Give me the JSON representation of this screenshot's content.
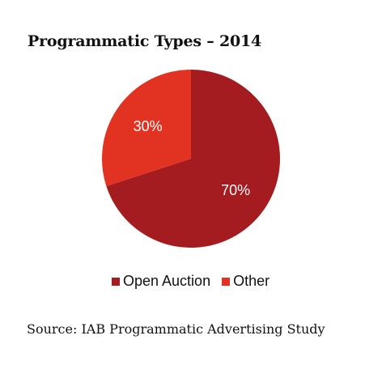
{
  "title": "Programmatic Types – 2014",
  "source": "Source: IAB Programmatic Advertising Study",
  "chart_data": {
    "type": "pie",
    "title": "Programmatic Types – 2014",
    "slices": [
      {
        "label": "Open Auction",
        "value": 70,
        "display": "70%",
        "color": "#a51c20"
      },
      {
        "label": "Other",
        "value": 30,
        "display": "30%",
        "color": "#e23222"
      }
    ],
    "legend_position": "bottom"
  }
}
